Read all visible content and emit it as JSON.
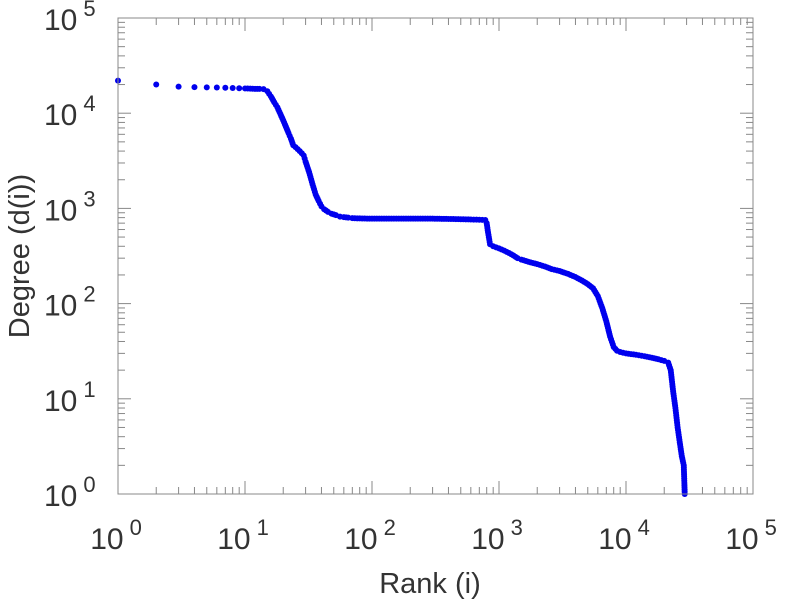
{
  "chart_data": {
    "type": "scatter",
    "title": "",
    "xlabel": "Rank (i)",
    "ylabel": "Degree (d(i))",
    "x_scale": "log",
    "y_scale": "log",
    "xlim": [
      1,
      100000
    ],
    "ylim": [
      1,
      100000
    ],
    "grid": false,
    "legend": "none",
    "marker_color": "#0000ee",
    "x_ticks": [
      {
        "base": "10",
        "exp": "0"
      },
      {
        "base": "10",
        "exp": "1"
      },
      {
        "base": "10",
        "exp": "2"
      },
      {
        "base": "10",
        "exp": "3"
      },
      {
        "base": "10",
        "exp": "4"
      },
      {
        "base": "10",
        "exp": "5"
      }
    ],
    "y_ticks": [
      {
        "base": "10",
        "exp": "0"
      },
      {
        "base": "10",
        "exp": "1"
      },
      {
        "base": "10",
        "exp": "2"
      },
      {
        "base": "10",
        "exp": "3"
      },
      {
        "base": "10",
        "exp": "4"
      },
      {
        "base": "10",
        "exp": "5"
      }
    ],
    "series": [
      {
        "x": [
          1,
          2,
          3,
          4,
          5,
          6,
          7,
          8,
          9,
          10,
          11,
          12,
          13,
          14,
          15,
          16,
          17,
          18,
          19,
          20,
          21,
          22,
          23,
          24,
          25,
          26,
          27,
          28,
          29,
          30,
          32,
          34,
          36,
          38,
          40,
          42,
          45,
          48,
          52,
          56,
          60,
          65,
          70,
          80,
          100,
          130,
          170,
          220,
          300,
          400,
          500,
          600,
          700,
          780,
          800,
          820,
          850,
          900,
          950,
          1000,
          1100,
          1200,
          1300,
          1400,
          1500,
          1700,
          2000,
          2300,
          2600,
          3000,
          3500,
          4000,
          4500,
          5000,
          5500,
          6000,
          6500,
          7000,
          7500,
          8000,
          8500,
          9000,
          10000,
          12000,
          14000,
          16000,
          18000,
          20000,
          21500,
          22500,
          23500,
          24500,
          25500,
          26500,
          27500,
          28500,
          29000
        ],
        "y": [
          22000,
          20000,
          19000,
          18800,
          18700,
          18600,
          18500,
          18400,
          18300,
          18200,
          18100,
          18000,
          18000,
          17900,
          17000,
          15000,
          13000,
          11500,
          9800,
          8400,
          7200,
          6200,
          5400,
          4600,
          4400,
          4200,
          4000,
          3800,
          3600,
          3100,
          2400,
          1800,
          1400,
          1200,
          1050,
          980,
          920,
          880,
          850,
          820,
          810,
          800,
          790,
          785,
          780,
          780,
          780,
          780,
          780,
          775,
          770,
          765,
          760,
          755,
          700,
          560,
          420,
          400,
          390,
          380,
          360,
          340,
          320,
          300,
          290,
          275,
          260,
          245,
          230,
          220,
          205,
          190,
          175,
          160,
          145,
          120,
          90,
          65,
          45,
          35,
          32,
          31,
          30,
          29,
          28,
          27,
          26,
          25,
          24,
          20,
          12,
          8,
          5,
          3.5,
          2.5,
          2,
          1
        ]
      }
    ]
  }
}
